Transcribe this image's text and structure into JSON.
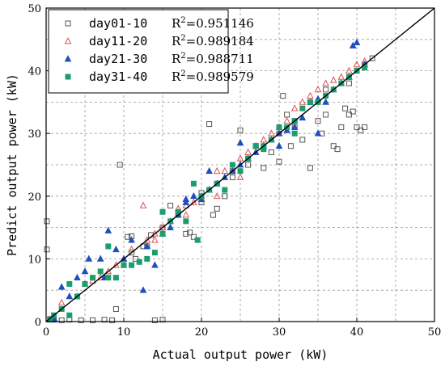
{
  "chart_data": {
    "type": "scatter",
    "xlabel": "Actual output power (kW)",
    "ylabel": "Predict output power (kW)",
    "xlim": [
      0,
      50
    ],
    "ylim": [
      0,
      50
    ],
    "xticks": [
      "0",
      "10",
      "20",
      "30",
      "40",
      "50"
    ],
    "yticks": [
      "0",
      "10",
      "20",
      "30",
      "40",
      "50"
    ],
    "grid": true,
    "legend_position": "top-left",
    "reference_line": {
      "x": [
        0,
        50
      ],
      "y": [
        0,
        50
      ],
      "color": "#000000"
    },
    "series": [
      {
        "name": "day01-10",
        "r2_prefix": "R",
        "r2_sup": "2",
        "r2_value": "=0.951146",
        "marker": "open-square",
        "color": "#555555",
        "points": [
          [
            0.1,
            16
          ],
          [
            0.1,
            11.5
          ],
          [
            0.5,
            0.4
          ],
          [
            1,
            0.3
          ],
          [
            2,
            0.2
          ],
          [
            3,
            0.3
          ],
          [
            4.5,
            0.2
          ],
          [
            6,
            0.2
          ],
          [
            7.5,
            0.3
          ],
          [
            8.5,
            0.2
          ],
          [
            9,
            2
          ],
          [
            9.5,
            25
          ],
          [
            10.5,
            13.5
          ],
          [
            11,
            13.6
          ],
          [
            11.5,
            10
          ],
          [
            12.5,
            12
          ],
          [
            13.5,
            13.8
          ],
          [
            14,
            0.2
          ],
          [
            15,
            0.3
          ],
          [
            16,
            18.5
          ],
          [
            17,
            17
          ],
          [
            18,
            14
          ],
          [
            18.5,
            14.2
          ],
          [
            19,
            13.5
          ],
          [
            20,
            20.5
          ],
          [
            21,
            31.5
          ],
          [
            21.5,
            17
          ],
          [
            22,
            18
          ],
          [
            23,
            20
          ],
          [
            24,
            23
          ],
          [
            25,
            30.5
          ],
          [
            26,
            25
          ],
          [
            27,
            28
          ],
          [
            28,
            24.5
          ],
          [
            29,
            27
          ],
          [
            30,
            25.5
          ],
          [
            30.5,
            36
          ],
          [
            31,
            33
          ],
          [
            31.5,
            28
          ],
          [
            32,
            31
          ],
          [
            33,
            29
          ],
          [
            34,
            24.5
          ],
          [
            35,
            32
          ],
          [
            35.5,
            30
          ],
          [
            36,
            33
          ],
          [
            37,
            28
          ],
          [
            37.5,
            27.5
          ],
          [
            38,
            31
          ],
          [
            38.5,
            34
          ],
          [
            39,
            33
          ],
          [
            39.5,
            33.5
          ],
          [
            40,
            31
          ],
          [
            40.5,
            30.5
          ],
          [
            41,
            31
          ],
          [
            40,
            40
          ],
          [
            41,
            41
          ],
          [
            42,
            42
          ],
          [
            39,
            38
          ],
          [
            36,
            37
          ],
          [
            34,
            35
          ],
          [
            32,
            32
          ],
          [
            30,
            30
          ],
          [
            26,
            26
          ],
          [
            24,
            24
          ],
          [
            22,
            22
          ],
          [
            20,
            19
          ],
          [
            15,
            15
          ],
          [
            13,
            12
          ],
          [
            11,
            11
          ]
        ]
      },
      {
        "name": "day11-20",
        "r2_prefix": "R",
        "r2_sup": "2",
        "r2_value": "=0.989184",
        "marker": "open-triangle",
        "color": "#e05050",
        "points": [
          [
            0.5,
            0.3
          ],
          [
            1,
            0.5
          ],
          [
            2,
            3
          ],
          [
            4,
            4
          ],
          [
            5,
            6
          ],
          [
            6,
            6.5
          ],
          [
            7,
            7
          ],
          [
            8,
            8
          ],
          [
            9,
            9
          ],
          [
            10,
            10
          ],
          [
            11,
            11.5
          ],
          [
            12.5,
            18.5
          ],
          [
            13,
            13
          ],
          [
            14,
            14
          ],
          [
            15,
            15
          ],
          [
            16,
            16
          ],
          [
            17,
            18
          ],
          [
            18,
            18.5
          ],
          [
            19,
            19
          ],
          [
            20,
            20
          ],
          [
            21,
            21
          ],
          [
            22,
            24
          ],
          [
            23,
            24
          ],
          [
            24,
            24
          ],
          [
            25,
            26
          ],
          [
            26,
            27
          ],
          [
            27,
            28
          ],
          [
            28,
            29
          ],
          [
            29,
            30
          ],
          [
            30,
            31
          ],
          [
            31,
            32
          ],
          [
            32,
            34
          ],
          [
            33,
            35
          ],
          [
            34,
            36
          ],
          [
            35,
            37
          ],
          [
            36,
            38
          ],
          [
            37,
            38.5
          ],
          [
            38,
            39
          ],
          [
            39,
            40
          ],
          [
            40,
            41
          ],
          [
            41,
            41.5
          ],
          [
            25,
            23
          ],
          [
            22,
            20
          ],
          [
            18,
            17
          ],
          [
            14,
            13
          ],
          [
            10,
            9
          ]
        ]
      },
      {
        "name": "day21-30",
        "r2_prefix": "R",
        "r2_sup": "2",
        "r2_value": "=0.988711",
        "marker": "filled-triangle",
        "color": "#1f4fbf",
        "points": [
          [
            0.5,
            0.3
          ],
          [
            1,
            0.5
          ],
          [
            2,
            5.5
          ],
          [
            3,
            4
          ],
          [
            4,
            7
          ],
          [
            5.5,
            10
          ],
          [
            7,
            10
          ],
          [
            8,
            14.5
          ],
          [
            9,
            11.5
          ],
          [
            10,
            10
          ],
          [
            11,
            13
          ],
          [
            12.5,
            5
          ],
          [
            13,
            12
          ],
          [
            14,
            9
          ],
          [
            15,
            14
          ],
          [
            16,
            15
          ],
          [
            17,
            17
          ],
          [
            18,
            19
          ],
          [
            19,
            20
          ],
          [
            20,
            19.5
          ],
          [
            21,
            21
          ],
          [
            22,
            22
          ],
          [
            23,
            23
          ],
          [
            24,
            24
          ],
          [
            25,
            25
          ],
          [
            26,
            26
          ],
          [
            27,
            27
          ],
          [
            28,
            28
          ],
          [
            29,
            29
          ],
          [
            30,
            30
          ],
          [
            31,
            30.5
          ],
          [
            32,
            31
          ],
          [
            33,
            32.5
          ],
          [
            34,
            35
          ],
          [
            35,
            35.5
          ],
          [
            36,
            35
          ],
          [
            37,
            37
          ],
          [
            38,
            38
          ],
          [
            39,
            39
          ],
          [
            39.5,
            44
          ],
          [
            40,
            44.5
          ],
          [
            41,
            41
          ],
          [
            35,
            30
          ],
          [
            30,
            28
          ],
          [
            25,
            28.5
          ],
          [
            21,
            24
          ],
          [
            18,
            19.5
          ],
          [
            7.5,
            7
          ],
          [
            5,
            8
          ]
        ]
      },
      {
        "name": "day31-40",
        "r2_prefix": "R",
        "r2_sup": "2",
        "r2_value": "=0.989579",
        "marker": "filled-square",
        "color": "#1a9e6e",
        "points": [
          [
            0.5,
            0.3
          ],
          [
            1,
            1
          ],
          [
            2,
            2
          ],
          [
            3,
            6
          ],
          [
            4,
            4
          ],
          [
            5,
            6
          ],
          [
            6,
            7
          ],
          [
            7,
            8
          ],
          [
            8,
            7
          ],
          [
            8,
            12
          ],
          [
            10,
            9
          ],
          [
            11,
            9
          ],
          [
            12,
            9.5
          ],
          [
            13,
            10
          ],
          [
            14,
            11
          ],
          [
            15,
            14
          ],
          [
            16,
            16
          ],
          [
            17,
            17.5
          ],
          [
            18,
            16
          ],
          [
            19,
            22
          ],
          [
            19.5,
            13
          ],
          [
            20,
            20
          ],
          [
            21,
            21
          ],
          [
            22,
            22
          ],
          [
            23,
            21
          ],
          [
            24,
            25
          ],
          [
            25,
            24
          ],
          [
            26,
            26
          ],
          [
            27,
            28
          ],
          [
            28,
            28
          ],
          [
            29,
            29
          ],
          [
            30,
            31
          ],
          [
            31,
            31
          ],
          [
            32,
            32
          ],
          [
            33,
            34
          ],
          [
            34,
            35
          ],
          [
            35,
            35
          ],
          [
            36,
            36
          ],
          [
            37,
            37
          ],
          [
            38,
            38
          ],
          [
            39,
            39
          ],
          [
            40,
            40
          ],
          [
            41,
            40.5
          ],
          [
            32,
            30
          ],
          [
            28,
            27.5
          ],
          [
            15,
            17.5
          ],
          [
            9,
            7
          ],
          [
            3,
            1
          ]
        ]
      }
    ]
  }
}
